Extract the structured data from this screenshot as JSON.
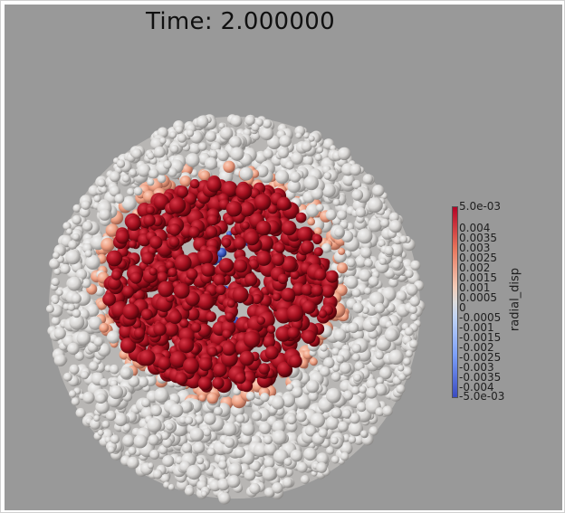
{
  "time_label": "Time: 2.000000",
  "legend": {
    "title": "radial_disp",
    "max_label": "5.0e-03",
    "min_label": "-5.0e-03",
    "ticks": [
      "0.004",
      "0.0035",
      "0.003",
      "0.0025",
      "0.002",
      "0.0015",
      "0.001",
      "0.0005",
      "0",
      "-0.0005",
      "-0.001",
      "-0.0015",
      "-0.002",
      "-0.0025",
      "-0.003",
      "-0.0035",
      "-0.004"
    ],
    "range": [
      -0.005,
      0.005
    ]
  },
  "colors": {
    "background": "#999999",
    "positive_max": "#b40426",
    "neutral": "#dddddd",
    "negative_max": "#3b4cc0"
  }
}
